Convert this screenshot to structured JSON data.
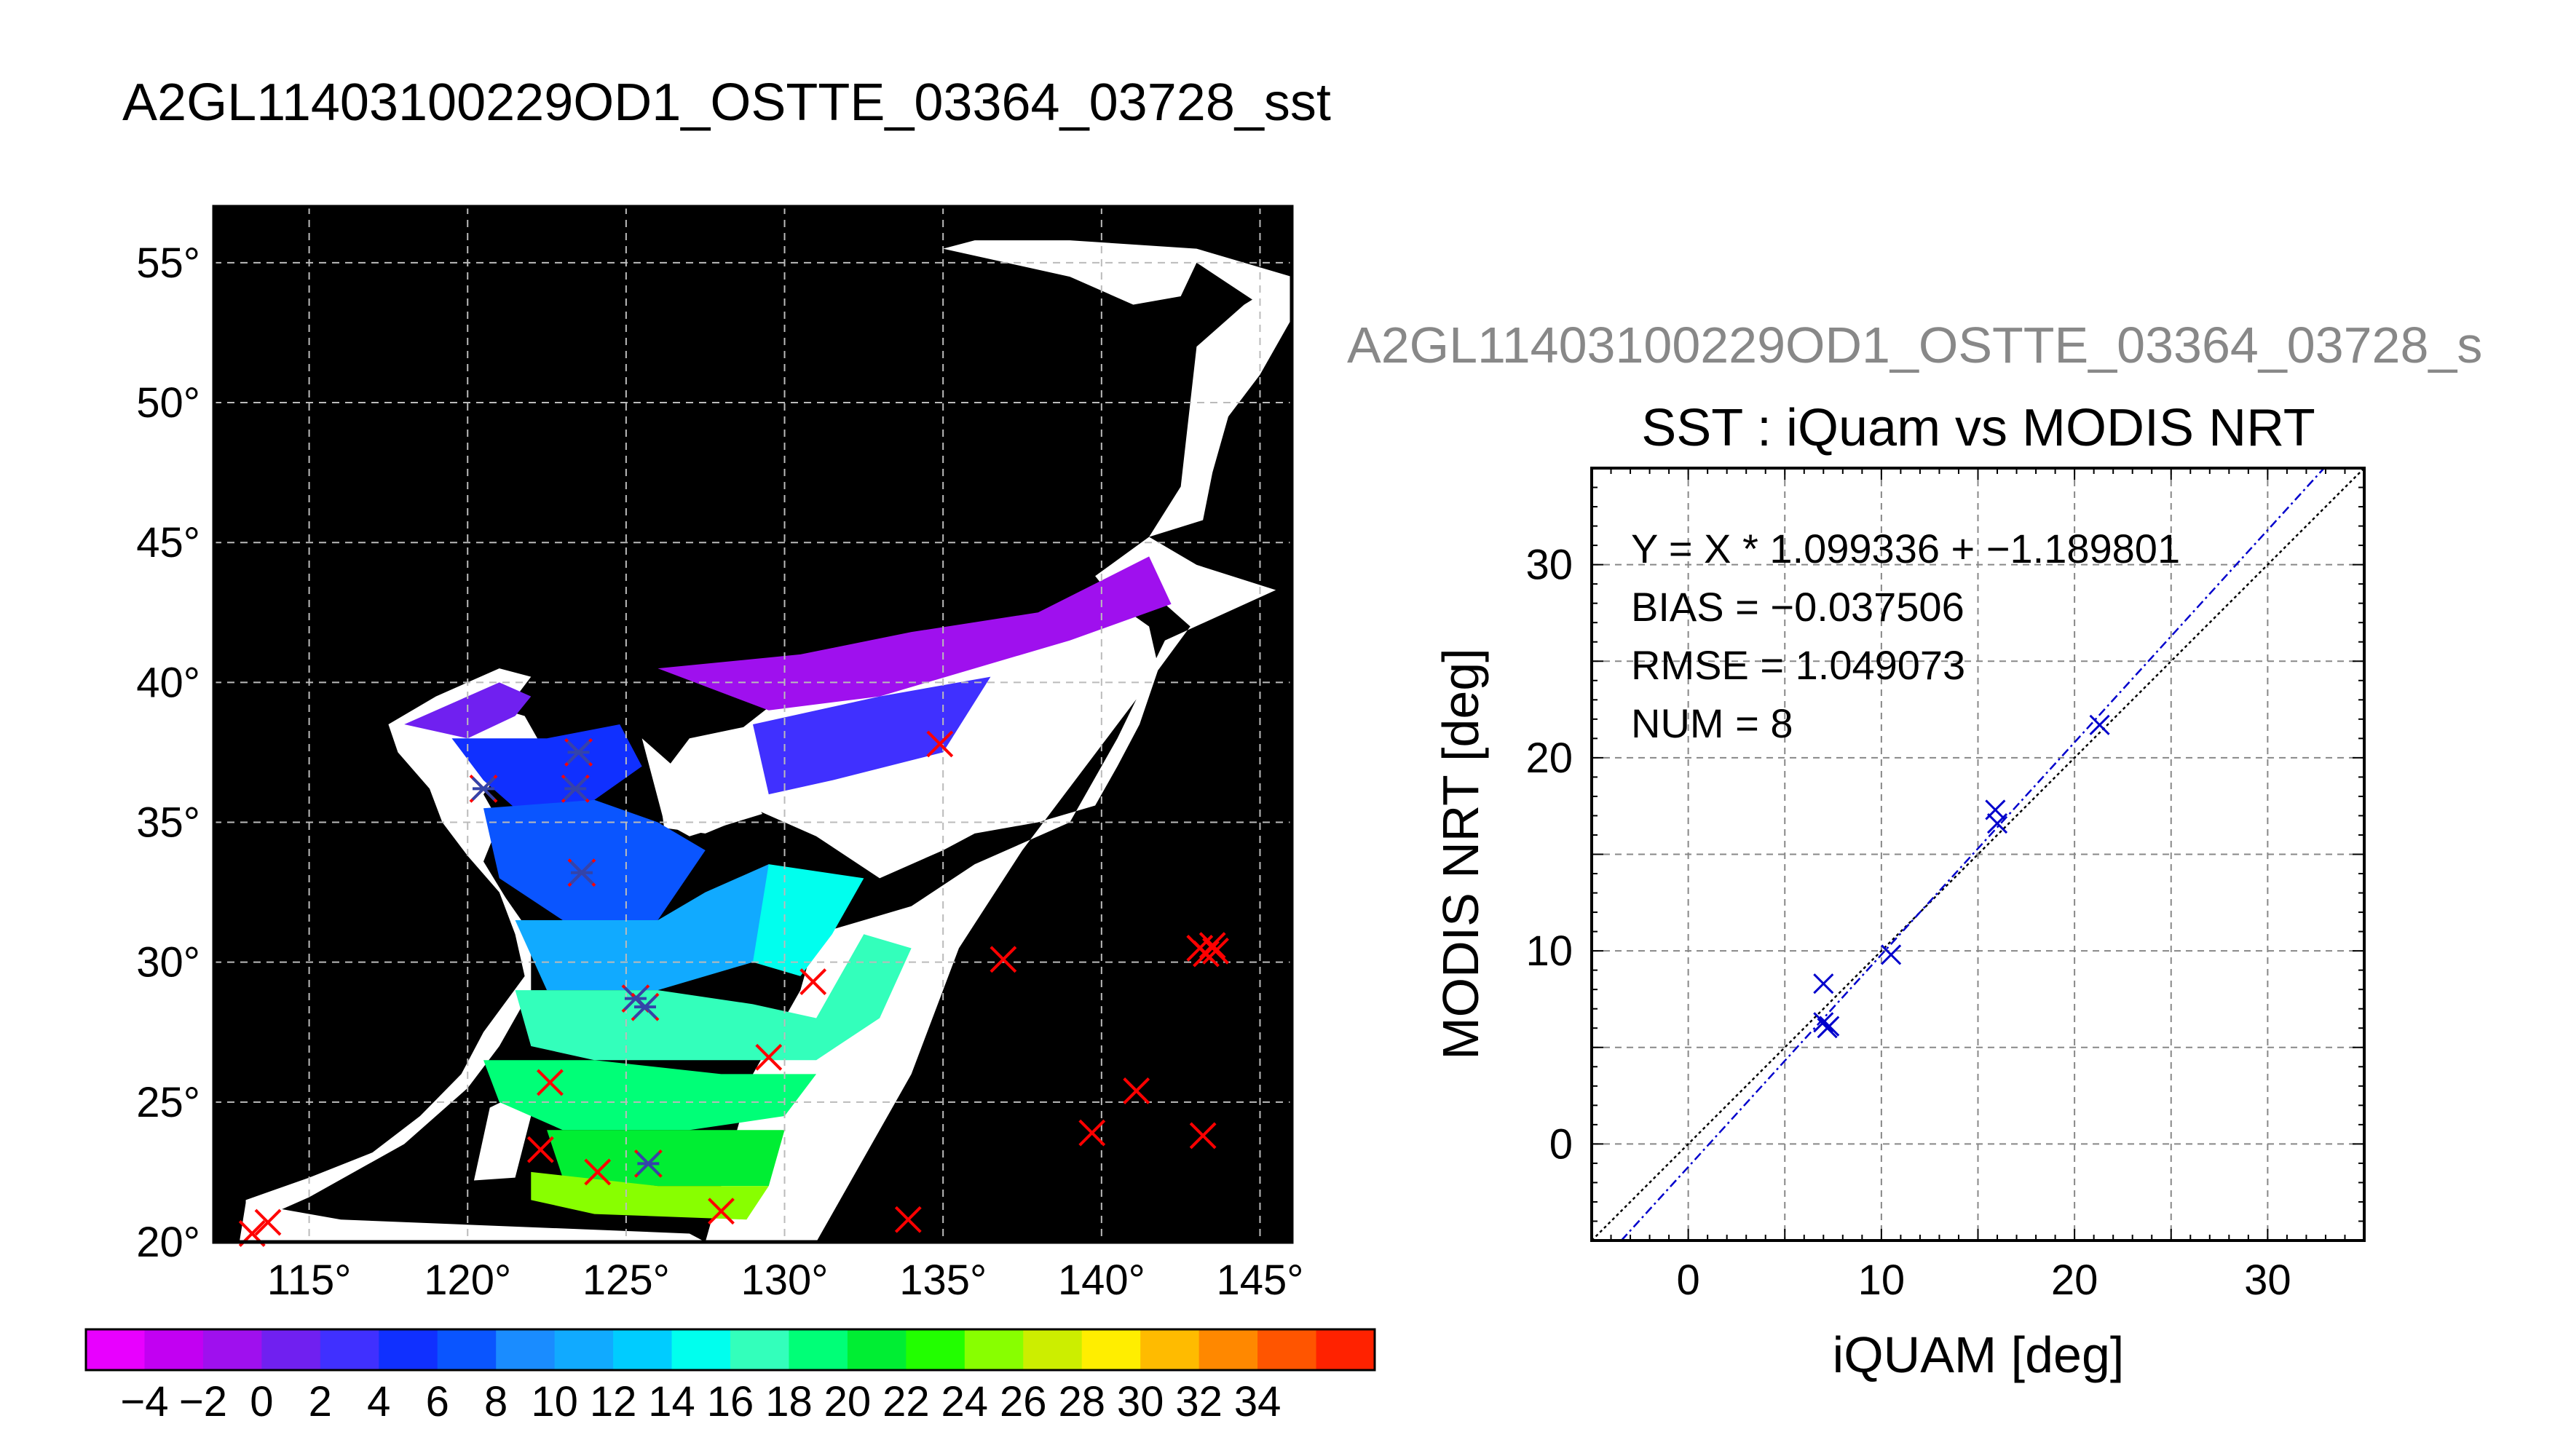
{
  "figure_title": "A2GL11403100229OD1_OSTTE_03364_03728_sst",
  "chart_data": [
    {
      "type": "map",
      "lon_ticks": [
        "115°",
        "120°",
        "125°",
        "130°",
        "135°",
        "140°",
        "145°"
      ],
      "lat_ticks": [
        "55°",
        "50°",
        "45°",
        "40°",
        "35°",
        "30°",
        "25°",
        "20°"
      ],
      "lon_range": [
        112,
        146
      ],
      "lat_range": [
        20,
        57
      ],
      "grid": true,
      "background_color": "#000000",
      "colorbar": {
        "min": -5,
        "max": 35,
        "step": 2,
        "tick_labels": [
          "−4",
          "−2",
          "0",
          "2",
          "4",
          "6",
          "8",
          "10",
          "12",
          "14",
          "16",
          "18",
          "20",
          "22",
          "24",
          "26",
          "28",
          "30",
          "32",
          "34"
        ],
        "colors": [
          "#e800ff",
          "#c200f2",
          "#9f10ee",
          "#7020f0",
          "#4030ff",
          "#1030ff",
          "#0a55ff",
          "#1a8cff",
          "#11aaff",
          "#00ccff",
          "#00ffee",
          "#33ffbb",
          "#00ff77",
          "#00ee33",
          "#22ff00",
          "#88ff00",
          "#ccee00",
          "#ffee00",
          "#ffbb00",
          "#ff8800",
          "#ff5500",
          "#ff2200"
        ]
      },
      "in_swath_points": [
        {
          "lon": 120.5,
          "lat": 36.2
        },
        {
          "lon": 123.5,
          "lat": 37.5
        },
        {
          "lon": 123.4,
          "lat": 36.2
        },
        {
          "lon": 123.6,
          "lat": 33.2
        },
        {
          "lon": 125.3,
          "lat": 28.7
        },
        {
          "lon": 125.6,
          "lat": 28.4
        },
        {
          "lon": 125.7,
          "lat": 22.8
        }
      ],
      "outside_points": [
        {
          "lon": 113.2,
          "lat": 20.3
        },
        {
          "lon": 113.7,
          "lat": 20.7
        },
        {
          "lon": 122.6,
          "lat": 25.7
        },
        {
          "lon": 122.3,
          "lat": 23.3
        },
        {
          "lon": 124.1,
          "lat": 22.5
        },
        {
          "lon": 128.0,
          "lat": 21.1
        },
        {
          "lon": 129.5,
          "lat": 26.6
        },
        {
          "lon": 130.9,
          "lat": 29.3
        },
        {
          "lon": 134.9,
          "lat": 37.8
        },
        {
          "lon": 136.9,
          "lat": 30.1
        },
        {
          "lon": 133.9,
          "lat": 20.8
        },
        {
          "lon": 139.7,
          "lat": 23.9
        },
        {
          "lon": 141.1,
          "lat": 25.4
        },
        {
          "lon": 143.2,
          "lat": 23.8
        },
        {
          "lon": 143.3,
          "lat": 30.3
        },
        {
          "lon": 143.5,
          "lat": 30.6
        },
        {
          "lon": 143.1,
          "lat": 30.5
        },
        {
          "lon": 143.6,
          "lat": 30.4
        }
      ],
      "in_swath_color": "#3344aa",
      "outside_color": "#ff0000"
    },
    {
      "type": "scatter",
      "subtitle": "A2GL11403100229OD1_OSTTE_03364_03728_s",
      "title": "SST : iQuam vs MODIS NRT",
      "xlabel": "iQUAM [deg]",
      "ylabel": "MODIS NRT [deg]",
      "xlim": [
        -5,
        35
      ],
      "ylim": [
        -5,
        35
      ],
      "x_ticks": [
        0,
        10,
        20,
        30
      ],
      "y_ticks": [
        0,
        10,
        20,
        30
      ],
      "grid": true,
      "stats": [
        "Y = X * 1.099336 + −1.189801",
        "BIAS = −0.037506",
        "RMSE = 1.049073",
        "NUM = 8"
      ],
      "fit": {
        "slope": 1.099336,
        "intercept": -1.189801,
        "color": "#0000cc"
      },
      "identity_color": "#000000",
      "point_color": "#0000cc",
      "points": [
        {
          "x": 7.0,
          "y": 8.3
        },
        {
          "x": 7.0,
          "y": 6.3
        },
        {
          "x": 7.3,
          "y": 6.1
        },
        {
          "x": 10.5,
          "y": 9.8
        },
        {
          "x": 15.9,
          "y": 17.3
        },
        {
          "x": 16.0,
          "y": 16.6
        },
        {
          "x": 21.3,
          "y": 21.7
        },
        {
          "x": 7.2,
          "y": 6.0
        }
      ]
    }
  ]
}
